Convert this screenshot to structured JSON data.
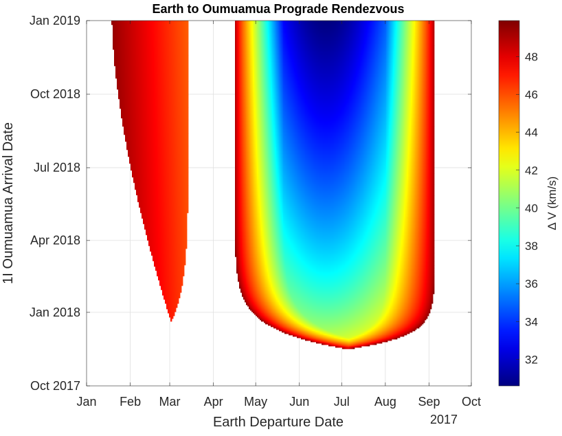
{
  "chart_data": {
    "type": "heatmap",
    "title": "Earth to Oumuamua Prograde Rendezvous",
    "xlabel": "Earth Departure Date",
    "ylabel": "1I Oumuamua Arrival Date",
    "x_year_label": "2017",
    "x_ticks": [
      "Jan",
      "Feb",
      "Mar",
      "Apr",
      "May",
      "Jun",
      "Jul",
      "Aug",
      "Sep",
      "Oct"
    ],
    "x_range": [
      "2017-01-01",
      "2017-10-01"
    ],
    "y_ticks": [
      "Oct 2017",
      "Jan 2018",
      "Apr 2018",
      "Jul 2018",
      "Oct 2018",
      "Jan 2019"
    ],
    "y_range": [
      "2017-10-01",
      "2019-01-01"
    ],
    "colorbar": {
      "label": "Δ V (km/s)",
      "ticks": [
        32,
        34,
        36,
        38,
        40,
        42,
        44,
        46,
        48
      ],
      "range": [
        30.6,
        49.9
      ],
      "colormap": "jet"
    },
    "grid": true,
    "regions": [
      {
        "name": "early-window",
        "departure_range": [
          "2017-01-19",
          "2017-03-14"
        ],
        "earliest_arrival": "2017-12-20",
        "earliest_arrival_departure": "2017-03-02",
        "delta_v_min": 45.5,
        "delta_v_max": 49.9
      },
      {
        "name": "main-window",
        "departure_range": [
          "2017-04-16",
          "2017-09-05"
        ],
        "earliest_arrival": "2017-11-16",
        "earliest_arrival_departure": "2017-07-05",
        "delta_v_min": 30.6,
        "delta_v_max": 49.9,
        "min_delta_v_departure": "2017-06-20",
        "min_delta_v_arrival": "2019-01-01"
      }
    ]
  }
}
